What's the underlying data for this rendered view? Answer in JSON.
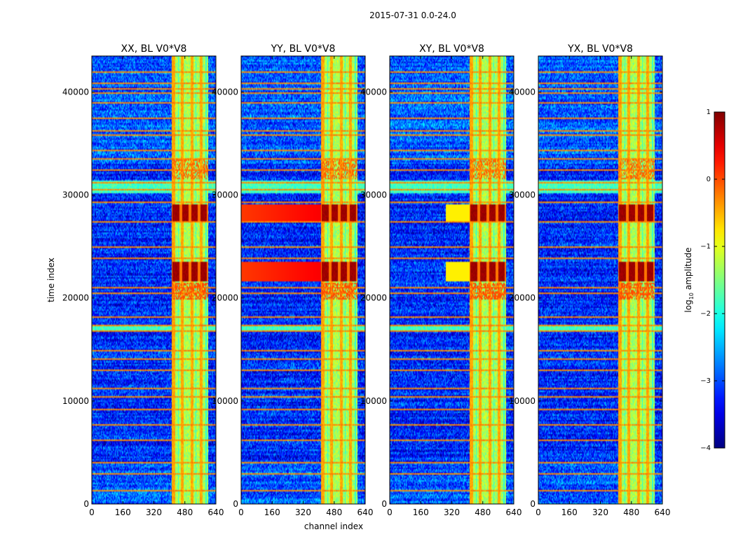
{
  "chart_data": {
    "type": "heatmap",
    "suptitle": "2015-07-31 0.0-24.0",
    "xlabel": "channel index",
    "ylabel": "time index",
    "xlim": [
      0,
      640
    ],
    "ylim": [
      0,
      43500
    ],
    "xticks": [
      0,
      160,
      320,
      480,
      640
    ],
    "yticks": [
      0,
      10000,
      20000,
      30000,
      40000
    ],
    "panels": [
      {
        "title": "XX, BL V0*V8",
        "variant": 0
      },
      {
        "title": "YY, BL V0*V8",
        "variant": 1
      },
      {
        "title": "XY, BL V0*V8",
        "variant": 2
      },
      {
        "title": "YX, BL V0*V8",
        "variant": 3
      }
    ],
    "colorbar": {
      "label_prefix": "log",
      "label_sub": "10",
      "label_suffix": " amplitude",
      "range": [
        -4,
        1
      ],
      "ticks": [
        1,
        0,
        -1,
        -2,
        -3,
        -4
      ],
      "tick_labels": [
        "1",
        "0",
        "−1",
        "−2",
        "−3",
        "−4"
      ],
      "colormap": "jet"
    },
    "structure": {
      "band_channels": [
        410,
        600
      ],
      "strong_band_times": [
        [
          27500,
          29000
        ],
        [
          21700,
          23500
        ]
      ],
      "rfi_rows": [
        1200,
        2900,
        4000,
        6200,
        7600,
        9100,
        10400,
        11200,
        12900,
        14000,
        14800,
        16800,
        17300,
        18100,
        20400,
        21000,
        23900,
        25000,
        27400,
        29300,
        30500,
        31200,
        32500,
        33600,
        34400,
        35800,
        36300,
        37500,
        39000,
        39900,
        40400,
        40900,
        42000
      ]
    }
  }
}
